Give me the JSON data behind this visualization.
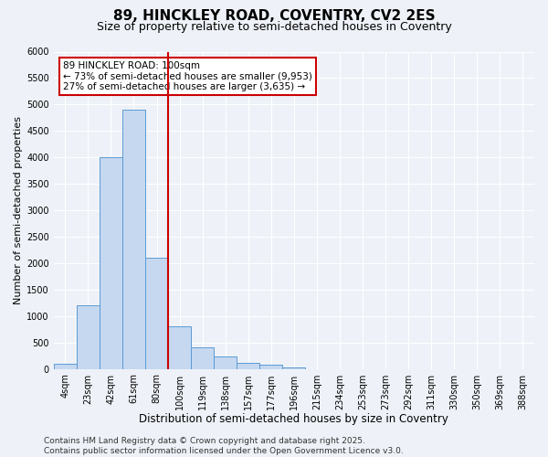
{
  "title_line1": "89, HINCKLEY ROAD, COVENTRY, CV2 2ES",
  "title_line2": "Size of property relative to semi-detached houses in Coventry",
  "xlabel": "Distribution of semi-detached houses by size in Coventry",
  "ylabel": "Number of semi-detached properties",
  "categories": [
    "4sqm",
    "23sqm",
    "42sqm",
    "61sqm",
    "80sqm",
    "100sqm",
    "119sqm",
    "138sqm",
    "157sqm",
    "177sqm",
    "196sqm",
    "215sqm",
    "234sqm",
    "253sqm",
    "273sqm",
    "292sqm",
    "311sqm",
    "330sqm",
    "350sqm",
    "369sqm",
    "388sqm"
  ],
  "values": [
    100,
    1200,
    4000,
    4900,
    2100,
    800,
    400,
    230,
    120,
    80,
    20,
    0,
    0,
    0,
    0,
    0,
    0,
    0,
    0,
    0,
    0
  ],
  "bar_color": "#c5d8f0",
  "bar_edge_color": "#5b9bd5",
  "vline_color": "#cc0000",
  "annotation_text": "89 HINCKLEY ROAD: 100sqm\n← 73% of semi-detached houses are smaller (9,953)\n27% of semi-detached houses are larger (3,635) →",
  "annotation_box_color": "#ffffff",
  "annotation_box_edge_color": "#cc0000",
  "ylim": [
    0,
    6000
  ],
  "yticks": [
    0,
    500,
    1000,
    1500,
    2000,
    2500,
    3000,
    3500,
    4000,
    4500,
    5000,
    5500,
    6000
  ],
  "bg_color": "#eef2f8",
  "footer_text": "Contains HM Land Registry data © Crown copyright and database right 2025.\nContains public sector information licensed under the Open Government Licence v3.0.",
  "title_fontsize": 11,
  "subtitle_fontsize": 9,
  "xlabel_fontsize": 8.5,
  "ylabel_fontsize": 8,
  "tick_fontsize": 7,
  "annotation_fontsize": 7.5,
  "footer_fontsize": 6.5
}
